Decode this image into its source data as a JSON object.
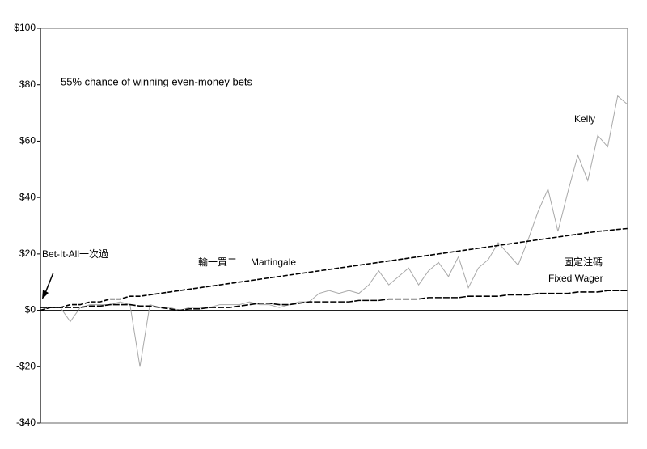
{
  "chart_data": {
    "type": "line",
    "title": "55% chance of winning even-money bets",
    "ylim": [
      -40,
      100
    ],
    "yticks": [
      {
        "value": -40,
        "label": "-$40"
      },
      {
        "value": -20,
        "label": "-$20"
      },
      {
        "value": 0,
        "label": "$0"
      },
      {
        "value": 20,
        "label": "$20"
      },
      {
        "value": 40,
        "label": "$40"
      },
      {
        "value": 60,
        "label": "$60"
      },
      {
        "value": 80,
        "label": "$80"
      },
      {
        "value": 100,
        "label": "$100"
      }
    ],
    "series": [
      {
        "name": "Kelly",
        "color": "#a8a8a8",
        "values": [
          0,
          1,
          1,
          -4,
          1,
          2,
          2,
          2,
          3,
          2,
          -20,
          2,
          1,
          1,
          0,
          1,
          1,
          1,
          2,
          2,
          2,
          3,
          2,
          2,
          1,
          2,
          3,
          3,
          6,
          7,
          6,
          7,
          6,
          9,
          14,
          9,
          12,
          15,
          9,
          14,
          17,
          12,
          19,
          8,
          15,
          18,
          24,
          20,
          16,
          25,
          35,
          43,
          28,
          42,
          55,
          46,
          62,
          58,
          76,
          73
        ]
      },
      {
        "name": "Martingale",
        "color": "#000000",
        "values": [
          0,
          1,
          1,
          2,
          2,
          3,
          3,
          4,
          4,
          5,
          5,
          5.5,
          6,
          6.5,
          7,
          7.5,
          8,
          8.5,
          9,
          9.5,
          10,
          10.5,
          11,
          11.5,
          12,
          12.5,
          13,
          13.5,
          14,
          14.5,
          15,
          15.5,
          16,
          16.5,
          17,
          17.5,
          18,
          18.5,
          19,
          19.5,
          20,
          20.5,
          21,
          21.5,
          22,
          22.5,
          23,
          23.5,
          24,
          24.5,
          25,
          25.5,
          26,
          26.5,
          27,
          27.5,
          28,
          28.3,
          28.7,
          29
        ]
      },
      {
        "name": "Fixed Wager",
        "color": "#000000",
        "values": [
          1,
          1,
          1,
          1,
          1,
          1.5,
          1.5,
          2,
          2,
          2,
          1.5,
          1.5,
          1,
          0.5,
          0,
          0.5,
          0.5,
          1,
          1,
          1,
          1.5,
          2,
          2.5,
          2.5,
          2,
          2,
          2.5,
          3,
          3,
          3,
          3,
          3,
          3.5,
          3.5,
          3.5,
          4,
          4,
          4,
          4,
          4.5,
          4.5,
          4.5,
          4.5,
          5,
          5,
          5,
          5,
          5.5,
          5.5,
          5.5,
          6,
          6,
          6,
          6,
          6.5,
          6.5,
          6.5,
          7,
          7,
          7
        ]
      }
    ],
    "annotations": [
      "輸一買二",
      "固定注碼",
      "Bet-It-All一次過"
    ],
    "grid": false
  }
}
